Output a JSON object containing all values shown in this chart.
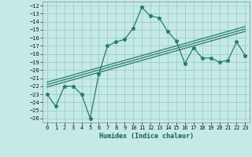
{
  "x": [
    0,
    1,
    2,
    3,
    4,
    5,
    6,
    7,
    8,
    9,
    10,
    11,
    12,
    13,
    14,
    15,
    16,
    17,
    18,
    19,
    20,
    21,
    22,
    23
  ],
  "y_main": [
    -23,
    -24.5,
    -22,
    -22,
    -23,
    -26,
    -20.5,
    -17,
    -16.5,
    -16.2,
    -14.8,
    -12.2,
    -13.3,
    -13.5,
    -15.2,
    -16.4,
    -19.2,
    -17.2,
    -18.5,
    -18.5,
    -19.0,
    -18.8,
    -16.5,
    -18.2
  ],
  "y_reg1": [
    -21.5,
    -21.2,
    -20.9,
    -20.6,
    -20.3,
    -20.0,
    -19.7,
    -19.4,
    -19.1,
    -18.8,
    -18.5,
    -18.2,
    -17.9,
    -17.6,
    -17.3,
    -17.0,
    -16.7,
    -16.4,
    -16.1,
    -15.8,
    -15.5,
    -15.2,
    -14.9,
    -14.6
  ],
  "y_reg2": [
    -21.8,
    -21.5,
    -21.2,
    -20.9,
    -20.6,
    -20.3,
    -20.0,
    -19.7,
    -19.4,
    -19.1,
    -18.8,
    -18.5,
    -18.2,
    -17.9,
    -17.6,
    -17.3,
    -17.0,
    -16.7,
    -16.4,
    -16.1,
    -15.8,
    -15.5,
    -15.2,
    -14.9
  ],
  "y_reg3": [
    -22.1,
    -21.8,
    -21.5,
    -21.2,
    -20.9,
    -20.6,
    -20.3,
    -20.0,
    -19.7,
    -19.4,
    -19.1,
    -18.8,
    -18.5,
    -18.2,
    -17.9,
    -17.6,
    -17.3,
    -17.0,
    -16.7,
    -16.4,
    -16.1,
    -15.8,
    -15.5,
    -15.2
  ],
  "line_color": "#2a7a6e",
  "reg_color": "#2a7a6e",
  "bg_color": "#c5eae6",
  "grid_color": "#9dccc7",
  "xlabel": "Humidex (Indice chaleur)",
  "xlim": [
    -0.5,
    23.5
  ],
  "ylim": [
    -26.5,
    -11.5
  ],
  "yticks": [
    -12,
    -13,
    -14,
    -15,
    -16,
    -17,
    -18,
    -19,
    -20,
    -21,
    -22,
    -23,
    -24,
    -25,
    -26
  ],
  "xticks": [
    0,
    1,
    2,
    3,
    4,
    5,
    6,
    7,
    8,
    9,
    10,
    11,
    12,
    13,
    14,
    15,
    16,
    17,
    18,
    19,
    20,
    21,
    22,
    23
  ]
}
